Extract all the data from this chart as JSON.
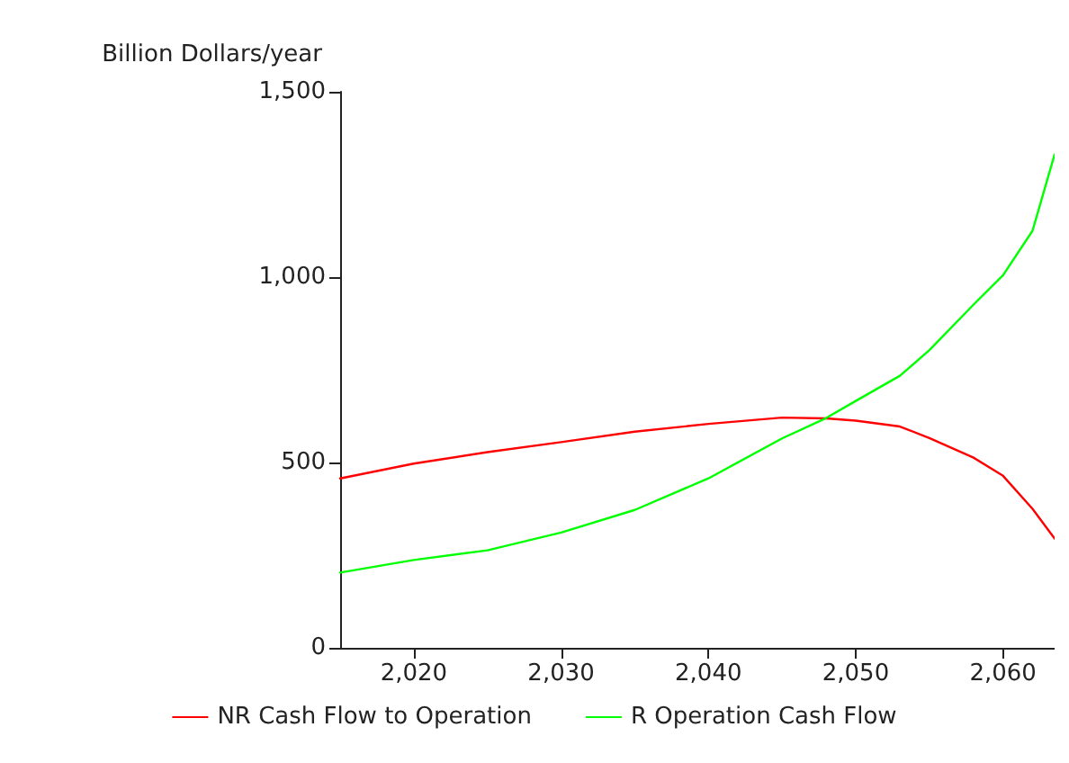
{
  "chart_data": {
    "type": "line",
    "ylabel": "Billion Dollars/year",
    "x": [
      2015,
      2020,
      2025,
      2030,
      2035,
      2040,
      2045,
      2048,
      2050,
      2053,
      2055,
      2058,
      2060,
      2062,
      2063.5
    ],
    "series": [
      {
        "name": "NR Cash Flow to Operation",
        "color": "#ff0000",
        "values": [
          457,
          497,
          528,
          555,
          583,
          604,
          621,
          619,
          613,
          597,
          566,
          513,
          464,
          375,
          295
        ]
      },
      {
        "name": "R Operation Cash Flow",
        "color": "#00ff00",
        "values": [
          203,
          237,
          263,
          311,
          372,
          457,
          565,
          620,
          666,
          734,
          803,
          926,
          1005,
          1125,
          1331
        ]
      }
    ],
    "xlim": [
      2015,
      2063.5
    ],
    "xticks": [
      {
        "value": 2020,
        "label": "2,020"
      },
      {
        "value": 2030,
        "label": "2,030"
      },
      {
        "value": 2040,
        "label": "2,040"
      },
      {
        "value": 2050,
        "label": "2,050"
      },
      {
        "value": 2060,
        "label": "2,060"
      }
    ],
    "ylim": [
      0,
      1500
    ],
    "yticks": [
      0,
      500,
      {
        "value": 1000,
        "label": "1,000"
      },
      {
        "value": 1500,
        "label": "1,500"
      }
    ],
    "grid": false,
    "legend": "bottom",
    "marker": "none",
    "line_style": "solid"
  }
}
